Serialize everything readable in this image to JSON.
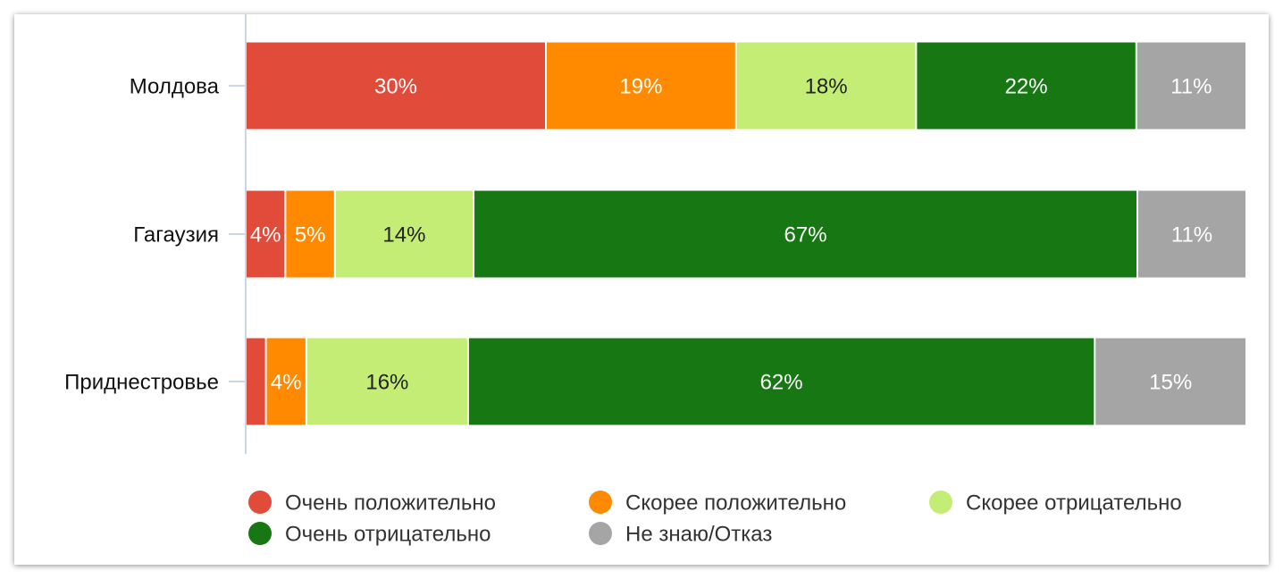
{
  "chart_data": {
    "type": "stacked-bar-horizontal",
    "categories": [
      "Молдова",
      "Гагаузия",
      "Приднестровье"
    ],
    "series": [
      {
        "name": "Очень положительно",
        "color": "#e04b3a",
        "text_color": "#ffffff",
        "values": [
          30,
          4,
          2
        ],
        "value_labels": [
          "30%",
          "4%",
          null
        ]
      },
      {
        "name": "Скорее положительно",
        "color": "#ff8a00",
        "text_color": "#ffffff",
        "values": [
          19,
          5,
          4
        ],
        "value_labels": [
          "19%",
          "5%",
          "4%"
        ]
      },
      {
        "name": "Скорее отрицательно",
        "color": "#c3ed74",
        "text_color": "#222222",
        "values": [
          18,
          14,
          16
        ],
        "value_labels": [
          "18%",
          "14%",
          "16%"
        ]
      },
      {
        "name": "Очень отрицательно",
        "color": "#177712",
        "text_color": "#ffffff",
        "values": [
          22,
          67,
          62
        ],
        "value_labels": [
          "22%",
          "67%",
          "62%"
        ]
      },
      {
        "name": "Не знаю/Отказ",
        "color": "#a5a5a5",
        "text_color": "#ffffff",
        "values": [
          11,
          11,
          15
        ],
        "value_labels": [
          "11%",
          "11%",
          "15%"
        ]
      }
    ]
  }
}
